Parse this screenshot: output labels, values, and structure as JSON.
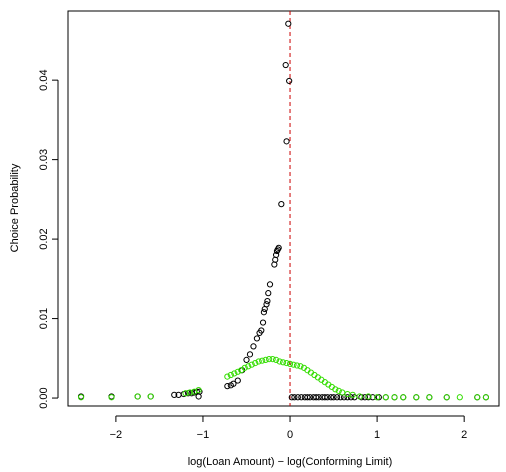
{
  "chart_data": {
    "type": "scatter",
    "xlabel": "log(Loan Amount) − log(Conforming Limit)",
    "ylabel": "Choice Probability",
    "xlim": [
      -2.55,
      2.4
    ],
    "ylim": [
      -0.001,
      0.0487
    ],
    "x_ticks": [
      -2,
      -1,
      0,
      1,
      2
    ],
    "x_tick_labels": [
      "−2",
      "−1",
      "0",
      "1",
      "2"
    ],
    "y_ticks": [
      0,
      0.01,
      0.02,
      0.03,
      0.04
    ],
    "y_tick_labels": [
      "0.00",
      "0.01",
      "0.02",
      "0.03",
      "0.04"
    ],
    "vline": {
      "x": 0,
      "color": "#cc0000",
      "style": "dashed"
    },
    "grid": false,
    "series": [
      {
        "color": "#000000",
        "marker": "open-circle",
        "points": [
          [
            -2.4,
            0.0002
          ],
          [
            -2.05,
            0.0002
          ],
          [
            -1.75,
            0.0002
          ],
          [
            -1.6,
            0.0002
          ],
          [
            -1.33,
            0.0004
          ],
          [
            -1.28,
            0.0004
          ],
          [
            -1.22,
            0.0005
          ],
          [
            -1.17,
            0.0006
          ],
          [
            -1.13,
            0.0006
          ],
          [
            -1.1,
            0.0007
          ],
          [
            -1.07,
            0.0008
          ],
          [
            -1.04,
            0.0008
          ],
          [
            -1.05,
            0.0002
          ],
          [
            -0.72,
            0.0015
          ],
          [
            -0.68,
            0.0016
          ],
          [
            -0.65,
            0.0018
          ],
          [
            -0.6,
            0.0022
          ],
          [
            -0.55,
            0.0035
          ],
          [
            -0.5,
            0.0048
          ],
          [
            -0.46,
            0.0055
          ],
          [
            -0.42,
            0.0065
          ],
          [
            -0.38,
            0.0075
          ],
          [
            -0.35,
            0.0082
          ],
          [
            -0.33,
            0.0085
          ],
          [
            -0.31,
            0.0095
          ],
          [
            -0.3,
            0.0108
          ],
          [
            -0.29,
            0.0112
          ],
          [
            -0.27,
            0.0118
          ],
          [
            -0.26,
            0.0122
          ],
          [
            -0.25,
            0.0132
          ],
          [
            -0.23,
            0.0143
          ],
          [
            -0.18,
            0.0168
          ],
          [
            -0.17,
            0.0174
          ],
          [
            -0.16,
            0.018
          ],
          [
            -0.15,
            0.0185
          ],
          [
            -0.14,
            0.0187
          ],
          [
            -0.13,
            0.0189
          ],
          [
            -0.1,
            0.0244
          ],
          [
            -0.04,
            0.0323
          ],
          [
            -0.05,
            0.0419
          ],
          [
            -0.02,
            0.0471
          ],
          [
            -0.01,
            0.0399
          ],
          [
            0.02,
            0.0001
          ],
          [
            0.05,
            0.0001
          ],
          [
            0.09,
            0.0001
          ],
          [
            0.13,
            0.0001
          ],
          [
            0.17,
            0.0001
          ],
          [
            0.2,
            0.0001
          ],
          [
            0.23,
            0.0001
          ],
          [
            0.27,
            0.0001
          ],
          [
            0.3,
            0.0001
          ],
          [
            0.33,
            0.0001
          ],
          [
            0.37,
            0.0001
          ],
          [
            0.4,
            0.0001
          ],
          [
            0.43,
            0.0001
          ],
          [
            0.47,
            0.0001
          ],
          [
            0.5,
            0.0001
          ],
          [
            0.54,
            0.0001
          ],
          [
            0.58,
            0.0001
          ],
          [
            0.62,
            0.0001
          ],
          [
            0.66,
            0.0001
          ],
          [
            0.7,
            0.0001
          ],
          [
            0.74,
            0.0001
          ],
          [
            0.82,
            0.0001
          ],
          [
            0.86,
            0.0001
          ],
          [
            0.9,
            0.0001
          ],
          [
            0.95,
            0.0001
          ],
          [
            1.02,
            0.0001
          ],
          [
            1.1,
            0.0001
          ],
          [
            1.2,
            0.0001
          ],
          [
            1.3,
            0.0001
          ],
          [
            1.45,
            0.0001
          ],
          [
            1.6,
            0.0001
          ],
          [
            1.8,
            0.0001
          ],
          [
            2.15,
            0.0001
          ],
          [
            2.25,
            0.0001
          ]
        ]
      },
      {
        "color": "#33dd00",
        "marker": "open-circle",
        "points": [
          [
            -2.4,
            0.0001
          ],
          [
            -2.05,
            0.0001
          ],
          [
            -1.75,
            0.0002
          ],
          [
            -1.6,
            0.0002
          ],
          [
            -1.2,
            0.0006
          ],
          [
            -1.15,
            0.0007
          ],
          [
            -1.1,
            0.0008
          ],
          [
            -1.05,
            0.001
          ],
          [
            -0.72,
            0.0027
          ],
          [
            -0.68,
            0.0029
          ],
          [
            -0.64,
            0.0031
          ],
          [
            -0.6,
            0.0033
          ],
          [
            -0.56,
            0.0035
          ],
          [
            -0.52,
            0.0038
          ],
          [
            -0.48,
            0.004
          ],
          [
            -0.44,
            0.0042
          ],
          [
            -0.4,
            0.0044
          ],
          [
            -0.36,
            0.0046
          ],
          [
            -0.32,
            0.0047
          ],
          [
            -0.28,
            0.0048
          ],
          [
            -0.24,
            0.0049
          ],
          [
            -0.2,
            0.0049
          ],
          [
            -0.16,
            0.0048
          ],
          [
            -0.12,
            0.0046
          ],
          [
            -0.08,
            0.0045
          ],
          [
            -0.04,
            0.0044
          ],
          [
            0.0,
            0.0043
          ],
          [
            0.04,
            0.0042
          ],
          [
            0.08,
            0.0041
          ],
          [
            0.12,
            0.004
          ],
          [
            0.16,
            0.0038
          ],
          [
            0.2,
            0.0035
          ],
          [
            0.24,
            0.0032
          ],
          [
            0.28,
            0.0029
          ],
          [
            0.32,
            0.0026
          ],
          [
            0.36,
            0.0023
          ],
          [
            0.4,
            0.002
          ],
          [
            0.44,
            0.0017
          ],
          [
            0.48,
            0.0014
          ],
          [
            0.52,
            0.0011
          ],
          [
            0.56,
            0.0009
          ],
          [
            0.6,
            0.0007
          ],
          [
            0.66,
            0.0005
          ],
          [
            0.72,
            0.0004
          ],
          [
            0.8,
            0.0002
          ],
          [
            0.9,
            0.0002
          ],
          [
            1.0,
            0.0001
          ],
          [
            1.1,
            0.0001
          ],
          [
            1.2,
            0.0001
          ],
          [
            1.3,
            0.0001
          ],
          [
            1.45,
            0.0001
          ],
          [
            1.6,
            0.0001
          ],
          [
            1.8,
            0.0001
          ],
          [
            1.95,
            0.0001
          ],
          [
            2.15,
            0.0001
          ],
          [
            2.25,
            0.0001
          ]
        ]
      }
    ]
  }
}
